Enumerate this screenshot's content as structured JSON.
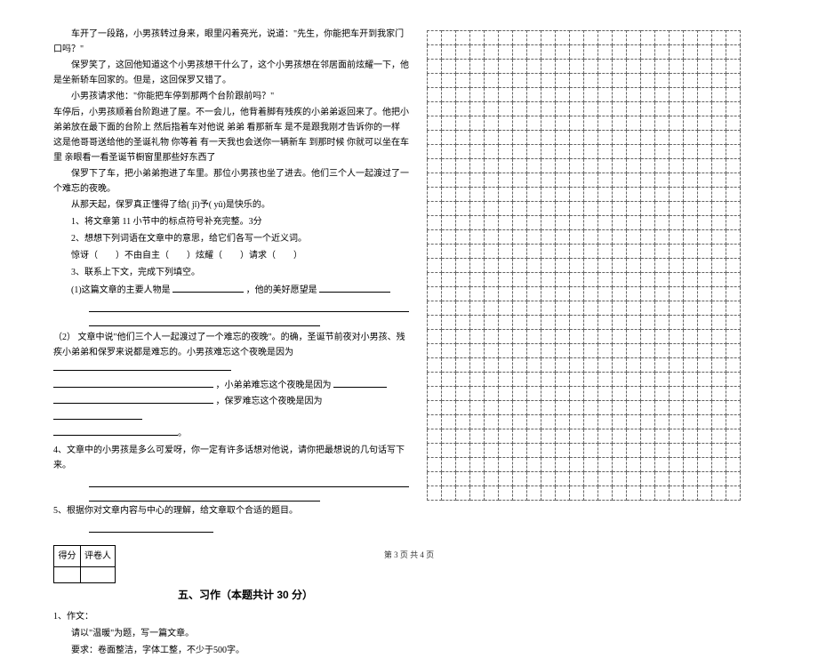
{
  "passage": {
    "p1": "车开了一段路，小男孩转过身来，眼里闪着亮光，说道：\"先生，你能把车开到我家门口吗？\"",
    "p2": "保罗笑了，这回他知道这个小男孩想干什么了，这个小男孩想在邻居面前炫耀一下，他是坐新轿车回家的。但是，这回保罗又错了。",
    "p3": "小男孩请求他：\"你能把车停到那两个台阶跟前吗？\"",
    "p4": "车停后，小男孩顺着台阶跑进了屋。不一会儿，他背着脚有残疾的小弟弟返回来了。他把小弟弟放在最下面的台阶上   然后指着车对他说   弟弟   看那新车   是不是跟我刚才告诉你的一样   这是他哥哥送给他的圣诞礼物   你等着   有一天我也会送你一辆新车   到那时候   你就可以坐在车里   亲眼看一看圣诞节橱窗里那些好东西了",
    "p5": "保罗下了车，把小弟弟抱进了车里。那位小男孩也坐了进去。他们三个人一起渡过了一个难忘的夜晚。",
    "p6": "从那天起，保罗真正懂得了给( jǐ)予( yǔ)是快乐的。"
  },
  "questions": {
    "q1": "1、将文章第 11 小节中的标点符号补充完整。3分",
    "q2": "2、想想下列词语在文章中的意思，给它们各写一个近义词。",
    "q2_line": "惊讶（　　）不由自主（　　）炫耀（　　）请求（　　）",
    "q3": "3、联系上下文，完成下列填空。",
    "q3_1_pre": "(1)这篇文章的主要人物是",
    "q3_1_mid": "，他的美好愿望是",
    "q3_2": "（2）  文章中说\"他们三个人一起渡过了一个难忘的夜晚\"。的确，圣诞节前夜对小男孩、残疾小弟弟和保罗来说都是难忘的。小男孩难忘这个夜晚是因为",
    "q3_2_mid": "，小弟弟难忘这个夜晚是因为",
    "q3_2_end": "，保罗难忘这个夜晚是因为",
    "q4": "4、文章中的小男孩是多么可爱呀，你一定有许多话想对他说，请你把最想说的几句话写下来。",
    "q5": "5、根据你对文章内容与中心的理解，给文章取个合适的题目。"
  },
  "score_box": {
    "col1": "得分",
    "col2": "评卷人"
  },
  "section5": {
    "title": "五、习作（本题共计 30 分）",
    "q1": "1、作文：",
    "line1": "请以\"温暖\"为题，写一篇文章。",
    "line2": "要求：卷面整洁，字体工整，不少于500字。"
  },
  "grid": {
    "rows": 33,
    "cols": 22
  },
  "footer": "第 3 页 共 4 页"
}
